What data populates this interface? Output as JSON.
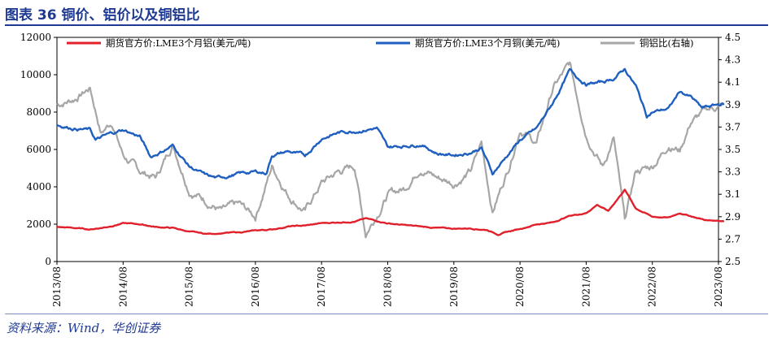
{
  "title": "图表 36  铜价、铝价以及铜铝比",
  "source": "资料来源：Wind，华创证券",
  "chart_data": {
    "type": "line",
    "title": "图表 36  铜价、铝价以及铜铝比",
    "x_ticks": [
      "2013/08",
      "2014/08",
      "2015/08",
      "2016/08",
      "2017/08",
      "2018/08",
      "2019/08",
      "2020/08",
      "2021/08",
      "2022/08",
      "2023/08"
    ],
    "y_left": {
      "range": [
        0,
        12000
      ],
      "ticks": [
        "0",
        "2000",
        "4000",
        "6000",
        "8000",
        "10000",
        "12000"
      ]
    },
    "y_right": {
      "range": [
        2.5,
        4.5
      ],
      "ticks": [
        "2.5",
        "2.7",
        "2.9",
        "3.1",
        "3.3",
        "3.5",
        "3.7",
        "3.9",
        "4.1",
        "4.3",
        "4.5"
      ]
    },
    "legend_position": "top",
    "grid": false,
    "series": [
      {
        "name": "期货官方价:LME3个月铝(美元/吨)",
        "color": "#e0202a",
        "axis": "left",
        "points": [
          [
            "2013/08",
            1850
          ],
          [
            "2013/11",
            1800
          ],
          [
            "2014/02",
            1720
          ],
          [
            "2014/05",
            1850
          ],
          [
            "2014/08",
            2050
          ],
          [
            "2014/11",
            2000
          ],
          [
            "2015/02",
            1850
          ],
          [
            "2015/05",
            1800
          ],
          [
            "2015/08",
            1600
          ],
          [
            "2015/11",
            1480
          ],
          [
            "2016/02",
            1520
          ],
          [
            "2016/05",
            1560
          ],
          [
            "2016/08",
            1650
          ],
          [
            "2016/11",
            1720
          ],
          [
            "2017/02",
            1880
          ],
          [
            "2017/05",
            1920
          ],
          [
            "2017/08",
            2050
          ],
          [
            "2017/11",
            2100
          ],
          [
            "2018/02",
            2150
          ],
          [
            "2018/04",
            2300
          ],
          [
            "2018/08",
            2050
          ],
          [
            "2018/11",
            1950
          ],
          [
            "2019/02",
            1870
          ],
          [
            "2019/05",
            1800
          ],
          [
            "2019/08",
            1760
          ],
          [
            "2019/11",
            1780
          ],
          [
            "2020/02",
            1700
          ],
          [
            "2020/04",
            1460
          ],
          [
            "2020/08",
            1750
          ],
          [
            "2020/11",
            2000
          ],
          [
            "2021/02",
            2100
          ],
          [
            "2021/05",
            2450
          ],
          [
            "2021/08",
            2600
          ],
          [
            "2021/10",
            3050
          ],
          [
            "2021/12",
            2700
          ],
          [
            "2022/03",
            3850
          ],
          [
            "2022/05",
            2850
          ],
          [
            "2022/08",
            2400
          ],
          [
            "2022/11",
            2350
          ],
          [
            "2023/01",
            2600
          ],
          [
            "2023/04",
            2350
          ],
          [
            "2023/06",
            2200
          ],
          [
            "2023/09",
            2180
          ]
        ]
      },
      {
        "name": "期货官方价:LME3个月铜(美元/吨)",
        "color": "#1f5fbf",
        "axis": "left",
        "points": [
          [
            "2013/08",
            7300
          ],
          [
            "2013/11",
            7150
          ],
          [
            "2014/02",
            7050
          ],
          [
            "2014/03",
            6500
          ],
          [
            "2014/05",
            6750
          ],
          [
            "2014/08",
            7050
          ],
          [
            "2014/11",
            6700
          ],
          [
            "2015/01",
            5600
          ],
          [
            "2015/05",
            6200
          ],
          [
            "2015/08",
            5100
          ],
          [
            "2015/11",
            4600
          ],
          [
            "2016/01",
            4450
          ],
          [
            "2016/05",
            4700
          ],
          [
            "2016/08",
            4800
          ],
          [
            "2016/10",
            4750
          ],
          [
            "2016/11",
            5700
          ],
          [
            "2017/02",
            5900
          ],
          [
            "2017/05",
            5650
          ],
          [
            "2017/08",
            6600
          ],
          [
            "2017/11",
            6900
          ],
          [
            "2018/02",
            7000
          ],
          [
            "2018/06",
            7150
          ],
          [
            "2018/08",
            6100
          ],
          [
            "2018/11",
            6200
          ],
          [
            "2019/02",
            6300
          ],
          [
            "2019/05",
            5800
          ],
          [
            "2019/08",
            5700
          ],
          [
            "2019/11",
            5850
          ],
          [
            "2020/01",
            6100
          ],
          [
            "2020/03",
            4700
          ],
          [
            "2020/06",
            5800
          ],
          [
            "2020/08",
            6500
          ],
          [
            "2020/11",
            7100
          ],
          [
            "2021/02",
            8500
          ],
          [
            "2021/05",
            10200
          ],
          [
            "2021/08",
            9500
          ],
          [
            "2021/11",
            9600
          ],
          [
            "2022/01",
            9800
          ],
          [
            "2022/03",
            10300
          ],
          [
            "2022/05",
            9400
          ],
          [
            "2022/07",
            7800
          ],
          [
            "2022/08",
            8000
          ],
          [
            "2022/11",
            8200
          ],
          [
            "2023/01",
            9100
          ],
          [
            "2023/03",
            8800
          ],
          [
            "2023/05",
            8200
          ],
          [
            "2023/08",
            8400
          ],
          [
            "2023/09",
            8450
          ]
        ]
      },
      {
        "name": "铜铝比(右轴)",
        "color": "#a6a6a6",
        "axis": "right",
        "points": [
          [
            "2013/08",
            3.9
          ],
          [
            "2013/11",
            3.95
          ],
          [
            "2014/02",
            4.05
          ],
          [
            "2014/04",
            3.65
          ],
          [
            "2014/06",
            3.75
          ],
          [
            "2014/08",
            3.45
          ],
          [
            "2014/11",
            3.3
          ],
          [
            "2015/02",
            3.25
          ],
          [
            "2015/05",
            3.55
          ],
          [
            "2015/08",
            3.15
          ],
          [
            "2015/11",
            3.05
          ],
          [
            "2016/02",
            2.95
          ],
          [
            "2016/05",
            3.0
          ],
          [
            "2016/08",
            2.9
          ],
          [
            "2016/11",
            3.35
          ],
          [
            "2017/02",
            3.1
          ],
          [
            "2017/05",
            2.95
          ],
          [
            "2017/08",
            3.2
          ],
          [
            "2017/11",
            3.3
          ],
          [
            "2018/02",
            3.35
          ],
          [
            "2018/04",
            2.75
          ],
          [
            "2018/08",
            3.1
          ],
          [
            "2018/11",
            3.15
          ],
          [
            "2019/02",
            3.35
          ],
          [
            "2019/05",
            3.25
          ],
          [
            "2019/08",
            3.2
          ],
          [
            "2019/11",
            3.3
          ],
          [
            "2020/01",
            3.55
          ],
          [
            "2020/03",
            2.95
          ],
          [
            "2020/06",
            3.35
          ],
          [
            "2020/08",
            3.7
          ],
          [
            "2020/11",
            3.55
          ],
          [
            "2021/02",
            4.05
          ],
          [
            "2021/05",
            4.25
          ],
          [
            "2021/08",
            3.65
          ],
          [
            "2021/11",
            3.35
          ],
          [
            "2022/01",
            3.6
          ],
          [
            "2022/03",
            2.85
          ],
          [
            "2022/05",
            3.3
          ],
          [
            "2022/08",
            3.35
          ],
          [
            "2022/11",
            3.55
          ],
          [
            "2023/01",
            3.5
          ],
          [
            "2023/03",
            3.75
          ],
          [
            "2023/06",
            3.85
          ],
          [
            "2023/09",
            3.9
          ]
        ]
      }
    ]
  }
}
